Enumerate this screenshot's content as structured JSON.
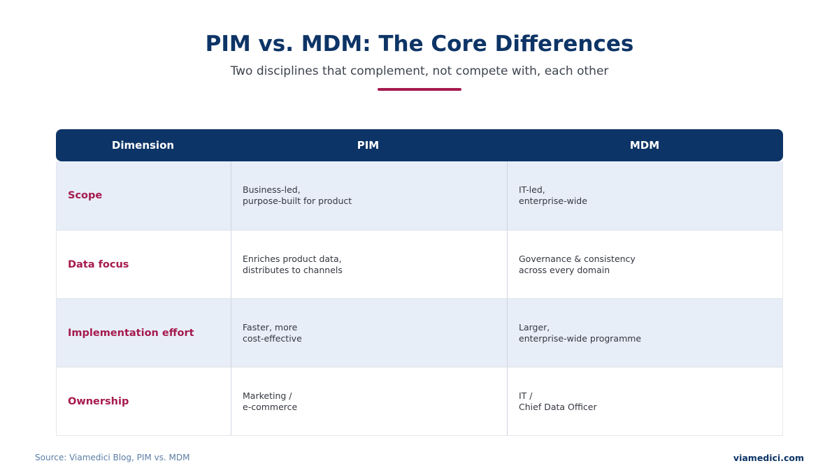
{
  "title": "PIM vs. MDM: The Core Differences",
  "subtitle": "Two disciplines that complement, not compete with, each other",
  "colors": {
    "navy": "#0d3466",
    "accent": "#a51a4e",
    "row_shade": "#e8eef8"
  },
  "table": {
    "headers": [
      "Dimension",
      "PIM",
      "MDM"
    ],
    "rows": [
      {
        "dimension": "Scope",
        "pim": [
          "Business-led,",
          "purpose-built for product"
        ],
        "mdm": [
          "IT-led,",
          "enterprise-wide"
        ]
      },
      {
        "dimension": "Data focus",
        "pim": [
          "Enriches product data,",
          "distributes to channels"
        ],
        "mdm": [
          "Governance & consistency",
          "across every domain"
        ]
      },
      {
        "dimension": "Implementation effort",
        "pim": [
          "Faster, more",
          "cost-effective"
        ],
        "mdm": [
          "Larger,",
          "enterprise-wide programme"
        ]
      },
      {
        "dimension": "Ownership",
        "pim": [
          "Marketing /",
          "e-commerce"
        ],
        "mdm": [
          "IT /",
          "Chief Data Officer"
        ]
      }
    ]
  },
  "footer": {
    "source": "Source: Viamedici Blog, PIM vs. MDM",
    "brand": "viamedici.com"
  }
}
